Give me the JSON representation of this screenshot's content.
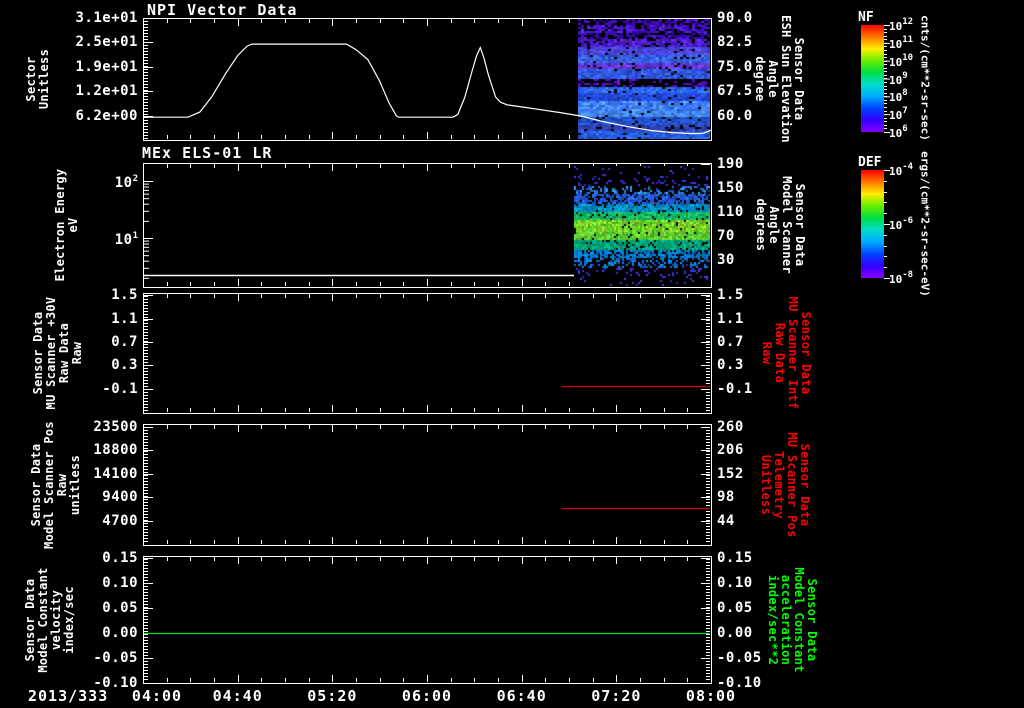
{
  "app": {
    "background": "#000000",
    "foreground": "#ffffff"
  },
  "panels": [
    {
      "title": "NPI Vector Data",
      "left_label": [
        "Sector",
        "Unitless"
      ],
      "left_ticks": [
        "3.1e+01",
        "2.5e+01",
        "1.9e+01",
        "1.2e+01",
        "6.2e+00"
      ],
      "right_ticks": [
        "90.0",
        "82.5",
        "75.0",
        "67.5",
        "60.0"
      ],
      "right_label": [
        "Sensor Data",
        "ESH Sun Elevation",
        "Angle",
        "degree"
      ],
      "right_label_color": "#ffffff"
    },
    {
      "title": "MEx ELS-01 LR",
      "left_label": [
        "Electron Energy",
        "eV"
      ],
      "left_ticks_exp": [
        {
          "base": "10",
          "exp": "2"
        },
        {
          "base": "10",
          "exp": "1"
        }
      ],
      "right_ticks": [
        "190",
        "150",
        "110",
        "70",
        "30"
      ],
      "right_label": [
        "Sensor Data",
        "Model Scanner",
        "Angle",
        "degrees"
      ],
      "right_label_color": "#ffffff"
    },
    {
      "title": "",
      "left_label": [
        "Sensor Data",
        "MU Scanner +30V",
        "Raw Data",
        "Raw"
      ],
      "left_ticks": [
        "1.5",
        "1.1",
        "0.7",
        "0.3",
        "-0.1"
      ],
      "right_ticks": [
        "1.5",
        "1.1",
        "0.7",
        "0.3",
        "-0.1"
      ],
      "right_label": [
        "Sensor Data",
        "MU Scanner Intf",
        "Raw Data",
        "Raw"
      ],
      "right_label_color": "#ff0000"
    },
    {
      "title": "",
      "left_label": [
        "Sensor Data",
        "Model Scanner Pos",
        "Raw",
        "unitless"
      ],
      "left_ticks": [
        "23500",
        "18800",
        "14100",
        "9400",
        "4700"
      ],
      "right_ticks": [
        "260",
        "206",
        "152",
        "98",
        "44"
      ],
      "right_label": [
        "Sensor Data",
        "MU Scanner Pos",
        "Telemetry",
        "Unitless"
      ],
      "right_label_color": "#ff0000"
    },
    {
      "title": "",
      "left_label": [
        "Sensor Data",
        "Model Constant",
        "velocity",
        "index/sec"
      ],
      "left_ticks": [
        "0.15",
        "0.10",
        "0.05",
        "0.00",
        "-0.05",
        "-0.10"
      ],
      "right_ticks": [
        "0.15",
        "0.10",
        "0.05",
        "0.00",
        "-0.05",
        "-0.10"
      ],
      "right_label": [
        "Sensor Data",
        "Model Constant",
        "acceleration",
        "index/sec**2"
      ],
      "right_label_color": "#00ff00"
    }
  ],
  "x_axis": {
    "date_label": "2013/333",
    "ticks": [
      "04:00",
      "04:40",
      "05:20",
      "06:00",
      "06:40",
      "07:20",
      "08:00"
    ]
  },
  "colorbars": [
    {
      "name": "NF",
      "ticks": [
        {
          "base": "10",
          "exp": "12"
        },
        {
          "base": "10",
          "exp": "11"
        },
        {
          "base": "10",
          "exp": "10"
        },
        {
          "base": "10",
          "exp": "9"
        },
        {
          "base": "10",
          "exp": "8"
        },
        {
          "base": "10",
          "exp": "7"
        },
        {
          "base": "10",
          "exp": "6"
        }
      ],
      "unit": "cnts/(cm**2-sr-sec)",
      "gradient": [
        "#ff0000",
        "#ff7700",
        "#ffee00",
        "#66ee00",
        "#00dd44",
        "#00ddcc",
        "#00aaff",
        "#0044ff",
        "#3300ff",
        "#8800ff"
      ]
    },
    {
      "name": "DEF",
      "ticks": [
        {
          "base": "10",
          "exp": "-4"
        },
        {
          "base": "10",
          "exp": "-6"
        },
        {
          "base": "10",
          "exp": "-8"
        }
      ],
      "unit": "ergs/(cm**2-sr-sec-eV)",
      "gradient": [
        "#ff0000",
        "#ff7700",
        "#ffee00",
        "#66ee00",
        "#00dd44",
        "#00ddcc",
        "#00aaff",
        "#0044ff",
        "#3300ff",
        "#8800ff"
      ]
    }
  ],
  "chart_data": [
    {
      "panel": 1,
      "type": "line+spectrogram",
      "title": "NPI Vector Data",
      "ylabel": "Sector (Unitless)",
      "ylim": [
        0,
        31.5
      ],
      "y_ticks": [
        31,
        25,
        19,
        12,
        6.2
      ],
      "right_axis": {
        "label": "Sensor Data ESH Sun Elevation Angle (degree)",
        "ticks": [
          90,
          82.5,
          75,
          67.5,
          60
        ]
      },
      "x_minutes_from_0400": [
        0,
        240
      ],
      "x_tick_labels": [
        "04:00",
        "04:40",
        "05:20",
        "06:00",
        "06:40",
        "07:20",
        "08:00"
      ],
      "series": [
        {
          "name": "Sector",
          "color": "#ffffff",
          "points": [
            [
              0,
              5.9
            ],
            [
              19,
              5.9
            ],
            [
              24,
              7.2
            ],
            [
              29,
              11.0
            ],
            [
              35,
              17.0
            ],
            [
              40,
              21.5
            ],
            [
              44,
              23.9
            ],
            [
              46,
              24.4
            ],
            [
              86,
              24.4
            ],
            [
              90,
              23.0
            ],
            [
              95,
              20.5
            ],
            [
              100,
              15.0
            ],
            [
              104,
              9.5
            ],
            [
              107,
              6.3
            ],
            [
              108,
              5.9
            ],
            [
              131,
              5.9
            ],
            [
              133,
              6.6
            ],
            [
              136,
              11.0
            ],
            [
              139,
              17.5
            ],
            [
              141,
              21.5
            ],
            [
              142.5,
              23.5
            ],
            [
              144,
              21.0
            ],
            [
              146,
              16.5
            ],
            [
              149,
              11.0
            ],
            [
              151,
              9.7
            ],
            [
              154,
              9.0
            ],
            [
              160,
              8.5
            ],
            [
              168,
              7.8
            ],
            [
              176,
              7.1
            ],
            [
              185,
              6.2
            ],
            [
              195,
              4.7
            ],
            [
              205,
              3.5
            ],
            [
              215,
              2.5
            ],
            [
              224,
              2.0
            ],
            [
              232,
              1.75
            ],
            [
              237,
              1.85
            ],
            [
              240,
              2.6
            ]
          ]
        }
      ],
      "spectrogram": {
        "colorbar": "NF",
        "x_start_min": 184,
        "x_end_min": 240,
        "bands_approx": [
          [
            0.0,
            0.055,
            "#2a0096",
            "#5a14e6",
            0.62
          ],
          [
            0.055,
            0.115,
            "#32009e",
            "#5a28f0",
            0.72
          ],
          [
            0.115,
            0.175,
            "#28008c",
            "#4b14d2",
            0.6
          ],
          [
            0.175,
            0.24,
            "#3c14b4",
            "#6428f0",
            0.8
          ],
          [
            0.24,
            0.3,
            "#3c3cd2",
            "#5a50f0",
            0.95
          ],
          [
            0.3,
            0.36,
            "#2a50dc",
            "#4678ff",
            0.95
          ],
          [
            0.36,
            0.42,
            "#5028c8",
            "#7846e6",
            0.9
          ],
          [
            0.42,
            0.5,
            "#2846d2",
            "#3c6eff",
            0.95
          ],
          [
            0.5,
            0.565,
            "#3c00aa",
            "#6414d2",
            0.3
          ],
          [
            0.565,
            0.61,
            "#1e50ff",
            "#3c82ff",
            0.95
          ],
          [
            0.61,
            0.68,
            "#1e3cd2",
            "#2a5ae6",
            0.95
          ],
          [
            0.68,
            0.76,
            "#2864ff",
            "#5aa0ff",
            0.97
          ],
          [
            0.76,
            0.82,
            "#3878f0",
            "#50a0ff",
            0.95
          ],
          [
            0.82,
            0.88,
            "#1e46c8",
            "#2a64e0",
            0.92
          ],
          [
            0.88,
            0.94,
            "#2838aa",
            "#3c50c8",
            0.9
          ],
          [
            0.94,
            1.0,
            "#1e50dc",
            "#3270f0",
            0.95
          ]
        ]
      }
    },
    {
      "panel": 2,
      "type": "spectrogram",
      "title": "MEx ELS-01 LR",
      "ylabel": "Electron Energy (eV)",
      "yscale": "log",
      "ylim": [
        1.3,
        190
      ],
      "y_ticks": [
        10,
        100
      ],
      "right_axis": {
        "label": "Sensor Data Model Scanner Angle (degrees)",
        "ticks": [
          190,
          150,
          110,
          70,
          30
        ]
      },
      "series": [
        {
          "name": "energy-floor-line",
          "color": "#ffffff",
          "const_value_eV": 2.2,
          "x_min": [
            0,
            240
          ]
        }
      ],
      "spectrogram": {
        "colorbar": "DEF",
        "x_start_min": 182,
        "x_end_min": 240,
        "bands_approx": [
          [
            0.0,
            0.08,
            "#2828d2",
            "#7828e6",
            0.07
          ],
          [
            0.08,
            0.16,
            "#2833dd",
            "#5028e6",
            0.15
          ],
          [
            0.16,
            0.24,
            "#2840e0",
            "#28b4e0",
            0.33
          ],
          [
            0.24,
            0.32,
            "#1e46c8",
            "#2873e6",
            0.7
          ],
          [
            0.32,
            0.39,
            "#0078d2",
            "#00aabe",
            0.88
          ],
          [
            0.39,
            0.45,
            "#00b478",
            "#2cc850",
            0.93
          ],
          [
            0.45,
            0.55,
            "#46d22a",
            "#aae028",
            0.96
          ],
          [
            0.55,
            0.62,
            "#3cc83c",
            "#82d228",
            0.94
          ],
          [
            0.62,
            0.7,
            "#00a08c",
            "#00b46e",
            0.9
          ],
          [
            0.7,
            0.77,
            "#0064dc",
            "#0096c8",
            0.78
          ],
          [
            0.77,
            0.85,
            "#2050e0",
            "#00a0e0",
            0.38
          ],
          [
            0.85,
            0.93,
            "#2840dd",
            "#6428dd",
            0.16
          ],
          [
            0.93,
            1.0,
            "#2830cc",
            "#7828cc",
            0.07
          ]
        ]
      }
    },
    {
      "panel": 3,
      "type": "line",
      "ylabel": "Sensor Data MU Scanner +30V Raw Data (Raw)",
      "ylim": [
        -0.5,
        1.53
      ],
      "y_ticks": [
        1.5,
        1.1,
        0.7,
        0.3,
        -0.1
      ],
      "right_axis": {
        "label": "Sensor Data MU Scanner Intf Raw Data (Raw)",
        "ticks": [
          1.5,
          1.1,
          0.7,
          0.3,
          -0.1
        ]
      },
      "series": [
        {
          "name": "MU Scanner Intf Raw",
          "color": "#dd0000",
          "const_value": -0.05,
          "x_min": [
            177,
            240
          ]
        }
      ]
    },
    {
      "panel": 4,
      "type": "line",
      "ylabel": "Sensor Data Model Scanner Pos Raw (unitless)",
      "ylim": [
        0,
        24100
      ],
      "y_ticks": [
        23500,
        18800,
        14100,
        9400,
        4700
      ],
      "right_axis": {
        "label": "Sensor Data MU Scanner Pos Telemetry (Unitless)",
        "ticks": [
          260,
          206,
          152,
          98,
          44
        ]
      },
      "series": [
        {
          "name": "MU Scanner Pos Telemetry",
          "color": "#dd0000",
          "const_value_raw": 7300,
          "const_value_right_axis": 68,
          "x_min": [
            177,
            240
          ]
        }
      ]
    },
    {
      "panel": 5,
      "type": "line",
      "ylabel": "Sensor Data Model Constant velocity (index/sec)",
      "ylim": [
        -0.1,
        0.154
      ],
      "y_ticks": [
        0.15,
        0.1,
        0.05,
        0.0,
        -0.05,
        -0.1
      ],
      "right_axis": {
        "label": "Sensor Data Model Constant acceleration (index/sec**2)",
        "ticks": [
          0.15,
          0.1,
          0.05,
          0.0,
          -0.05,
          -0.1
        ]
      },
      "series": [
        {
          "name": "Model Constant acceleration",
          "color": "#00dd33",
          "const_value": 0.0,
          "x_min": [
            0,
            240
          ]
        }
      ]
    }
  ]
}
